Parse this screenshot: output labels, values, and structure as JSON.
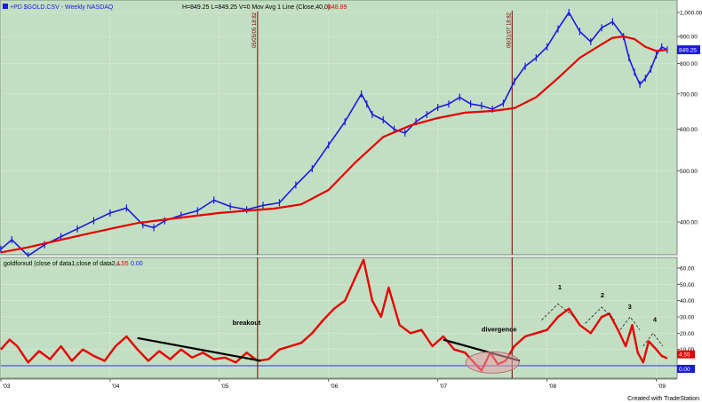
{
  "header": {
    "symbol": "+PD $GOLD.CSV - Weekly  NASDAQ",
    "quote": "H=849.25  L=849.25  V=0  Mov Avg 1 Line (Close,40,0)",
    "ma_value": "848.89"
  },
  "lower_header": {
    "title": "goldforxutl (close of data1,close of data2,...",
    "value1": "4.55",
    "value2": "0.00"
  },
  "footer": {
    "credit": "Created with TradeStation"
  },
  "colors": {
    "panel_bg": "#c3dfc3",
    "price": "#1a1ae0",
    "ma": "#e60000",
    "osc": "#e60000",
    "zero_line": "#3030d0",
    "vline": "#7a0000"
  },
  "chart_data": [
    {
      "type": "line",
      "name": "price",
      "y_scale": "log",
      "ylim": [
        350,
        1050
      ],
      "x_range": [
        2003.0,
        2009.15
      ],
      "y_ticks": [
        "1,000.00",
        "900.00",
        "800.00",
        "700.00",
        "600.00",
        "500.00",
        "400.00"
      ],
      "y_tick_values": [
        1000,
        900,
        800,
        700,
        600,
        500,
        400
      ],
      "last_price_label": "849.25",
      "last_price": 849.25,
      "vlines": [
        {
          "x": 2005.35,
          "label": "05/05/05 18:82"
        },
        {
          "x": 2007.68,
          "label": "08/31/07 18:82"
        }
      ],
      "series": [
        {
          "name": "Close",
          "x": [
            2003.0,
            2003.1,
            2003.25,
            2003.4,
            2003.55,
            2003.7,
            2003.85,
            2004.0,
            2004.15,
            2004.3,
            2004.4,
            2004.5,
            2004.65,
            2004.8,
            2004.95,
            2005.1,
            2005.25,
            2005.4,
            2005.55,
            2005.7,
            2005.85,
            2006.0,
            2006.15,
            2006.3,
            2006.35,
            2006.4,
            2006.5,
            2006.6,
            2006.7,
            2006.8,
            2006.9,
            2007.0,
            2007.1,
            2007.2,
            2007.3,
            2007.4,
            2007.5,
            2007.6,
            2007.7,
            2007.8,
            2007.9,
            2008.0,
            2008.1,
            2008.2,
            2008.3,
            2008.4,
            2008.5,
            2008.6,
            2008.7,
            2008.75,
            2008.8,
            2008.85,
            2008.9,
            2008.95,
            2009.0,
            2009.05,
            2009.1
          ],
          "y": [
            355,
            370,
            345,
            362,
            375,
            388,
            402,
            416,
            425,
            395,
            390,
            402,
            412,
            420,
            440,
            428,
            422,
            430,
            435,
            470,
            505,
            560,
            620,
            700,
            670,
            640,
            625,
            600,
            590,
            620,
            640,
            660,
            670,
            690,
            670,
            665,
            655,
            672,
            740,
            790,
            820,
            860,
            930,
            1000,
            920,
            880,
            935,
            960,
            900,
            820,
            770,
            730,
            750,
            780,
            830,
            860,
            849.25
          ]
        },
        {
          "name": "Mov Avg 1 Line (Close,40,0)",
          "x": [
            2003.0,
            2003.25,
            2003.5,
            2003.75,
            2004.0,
            2004.25,
            2004.5,
            2004.75,
            2005.0,
            2005.25,
            2005.5,
            2005.75,
            2006.0,
            2006.25,
            2006.5,
            2006.75,
            2007.0,
            2007.25,
            2007.5,
            2007.7,
            2007.9,
            2008.1,
            2008.3,
            2008.5,
            2008.6,
            2008.7,
            2008.8,
            2008.9,
            2009.0,
            2009.1
          ],
          "y": [
            350,
            358,
            368,
            378,
            388,
            398,
            404,
            410,
            416,
            420,
            424,
            432,
            460,
            520,
            580,
            610,
            630,
            645,
            650,
            658,
            690,
            750,
            820,
            870,
            895,
            900,
            890,
            860,
            845,
            848.89
          ]
        }
      ]
    },
    {
      "type": "line",
      "name": "goldforxutl",
      "ylim": [
        -5,
        68
      ],
      "x_range": [
        2003.0,
        2009.15
      ],
      "y_ticks": [
        "60.00",
        "50.00",
        "40.00",
        "30.00",
        "20.00",
        "10.00"
      ],
      "y_tick_values": [
        60,
        50,
        40,
        30,
        20,
        10
      ],
      "current_values": [
        "4.55",
        "0.00"
      ],
      "zero_line": 0,
      "x_ticks": [
        "'03",
        "'04",
        "'05",
        "'06",
        "'07",
        "'08",
        "'09"
      ],
      "x_tick_values": [
        2003.0,
        2004.0,
        2005.0,
        2006.0,
        2007.0,
        2008.0,
        2009.0
      ],
      "series": [
        {
          "name": "goldforxutl",
          "x": [
            2003.0,
            2003.08,
            2003.15,
            2003.25,
            2003.35,
            2003.45,
            2003.55,
            2003.65,
            2003.75,
            2003.85,
            2003.95,
            2004.05,
            2004.15,
            2004.25,
            2004.35,
            2004.45,
            2004.55,
            2004.65,
            2004.75,
            2004.85,
            2004.95,
            2005.05,
            2005.15,
            2005.25,
            2005.35,
            2005.45,
            2005.55,
            2005.65,
            2005.75,
            2005.85,
            2005.95,
            2006.05,
            2006.15,
            2006.25,
            2006.32,
            2006.4,
            2006.48,
            2006.55,
            2006.65,
            2006.75,
            2006.85,
            2006.95,
            2007.05,
            2007.15,
            2007.25,
            2007.33,
            2007.4,
            2007.48,
            2007.55,
            2007.62,
            2007.7,
            2007.8,
            2007.9,
            2008.0,
            2008.1,
            2008.2,
            2008.3,
            2008.4,
            2008.5,
            2008.57,
            2008.65,
            2008.72,
            2008.78,
            2008.83,
            2008.88,
            2008.93,
            2009.0,
            2009.05,
            2009.1
          ],
          "y": [
            10,
            16,
            12,
            2,
            9,
            4,
            12,
            3,
            10,
            6,
            3,
            12,
            18,
            10,
            3,
            9,
            4,
            10,
            5,
            8,
            4,
            5,
            2,
            8,
            3,
            4,
            10,
            12,
            14,
            20,
            28,
            35,
            40,
            55,
            65,
            40,
            30,
            48,
            25,
            20,
            22,
            12,
            18,
            10,
            8,
            2,
            -3,
            8,
            1,
            3,
            12,
            18,
            20,
            22,
            30,
            35,
            25,
            20,
            30,
            32,
            22,
            12,
            25,
            8,
            2,
            15,
            10,
            6,
            4.55
          ]
        }
      ],
      "annotations": [
        {
          "text": "breakout",
          "x": 2005.12,
          "y": 25
        },
        {
          "text": "divergence",
          "x": 2007.4,
          "y": 21
        },
        {
          "text": "1",
          "x": 2008.1,
          "y": 47
        },
        {
          "text": "2",
          "x": 2008.49,
          "y": 42
        },
        {
          "text": "3",
          "x": 2008.74,
          "y": 35
        },
        {
          "text": "4",
          "x": 2008.97,
          "y": 27
        }
      ]
    }
  ]
}
